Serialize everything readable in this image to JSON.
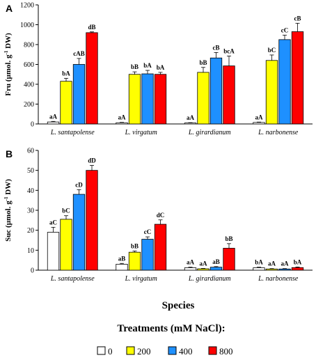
{
  "chart_data": [
    {
      "type": "bar",
      "panel": "A",
      "ylabel_main": "Fru (µmol. g",
      "ylabel_sup": "-1",
      "ylabel_end": " DW)",
      "ylim": [
        0,
        1200
      ],
      "yticks": [
        "0",
        "200",
        "400",
        "600",
        "800",
        "1000",
        "1200"
      ],
      "categories": [
        "L. santapolense",
        "L. virgatum",
        "L. girardianum",
        "L. narbonense"
      ],
      "series": [
        {
          "name": "0",
          "color": "#ffffff",
          "values": [
            20,
            12,
            10,
            15
          ],
          "errors": [
            6,
            4,
            3,
            4
          ],
          "labels": [
            "aA",
            "aA",
            "aA",
            "aA"
          ]
        },
        {
          "name": "200",
          "color": "#ffff00",
          "values": [
            430,
            500,
            520,
            640
          ],
          "errors": [
            30,
            25,
            50,
            55
          ],
          "labels": [
            "bA",
            "bB",
            "bB",
            "bC"
          ]
        },
        {
          "name": "400",
          "color": "#1e90ff",
          "values": [
            600,
            505,
            665,
            850
          ],
          "errors": [
            60,
            35,
            55,
            45
          ],
          "labels": [
            "cAB",
            "bA",
            "cB",
            "cC"
          ]
        },
        {
          "name": "800",
          "color": "#ff0000",
          "values": [
            920,
            500,
            585,
            930
          ],
          "errors": [
            8,
            20,
            100,
            85
          ],
          "labels": [
            "dB",
            "bA",
            "bcA",
            "cB"
          ]
        }
      ]
    },
    {
      "type": "bar",
      "panel": "B",
      "ylabel_main": "Suc (µmol. g",
      "ylabel_sup": "-1",
      "ylabel_end": " DW)",
      "ylim": [
        0,
        60
      ],
      "yticks": [
        "0",
        "10",
        "20",
        "30",
        "40",
        "50",
        "60"
      ],
      "categories": [
        "L. santapolense",
        "L. virgatum",
        "L. girardianum",
        "L. narbonense"
      ],
      "series": [
        {
          "name": "0",
          "color": "#ffffff",
          "values": [
            19,
            3,
            1.2,
            1.2
          ],
          "errors": [
            2.5,
            0.4,
            0.3,
            0.3
          ],
          "labels": [
            "aC",
            "aB",
            "aA",
            "bA"
          ]
        },
        {
          "name": "200",
          "color": "#ffff00",
          "values": [
            25.5,
            9,
            0.7,
            0.6
          ],
          "errors": [
            1.8,
            0.6,
            0.2,
            0.2
          ],
          "labels": [
            "bC",
            "bB",
            "aA",
            "aA"
          ]
        },
        {
          "name": "400",
          "color": "#1e90ff",
          "values": [
            38,
            15.5,
            1.5,
            0.6
          ],
          "errors": [
            2.3,
            1.2,
            0.3,
            0.2
          ],
          "labels": [
            "cD",
            "cC",
            "aB",
            "aA"
          ]
        },
        {
          "name": "800",
          "color": "#ff0000",
          "values": [
            50,
            23,
            11,
            1.3
          ],
          "errors": [
            2.5,
            2.2,
            2.3,
            0.3
          ],
          "labels": [
            "dD",
            "dC",
            "bB",
            "bA"
          ]
        }
      ]
    }
  ],
  "xaxis_title": "Species",
  "legend": {
    "title": "Treatments (mM NaCl):",
    "items": [
      "0",
      "200",
      "400",
      "800"
    ],
    "colors": [
      "#ffffff",
      "#ffff00",
      "#1e90ff",
      "#ff0000"
    ]
  }
}
